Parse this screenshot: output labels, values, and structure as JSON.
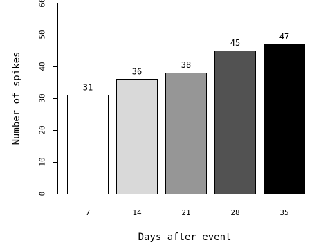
{
  "chart_data": {
    "type": "bar",
    "categories": [
      "7",
      "14",
      "21",
      "28",
      "35"
    ],
    "values": [
      31,
      36,
      38,
      45,
      47
    ],
    "data_labels": [
      "31",
      "36",
      "38",
      "45",
      "47"
    ],
    "bar_colors": [
      "#ffffff",
      "#d9d9d9",
      "#969696",
      "#525252",
      "#000000"
    ],
    "xlabel": "Days after event",
    "ylabel": "Number of spikes",
    "ylim": [
      0,
      60
    ],
    "yticks": [
      0,
      10,
      20,
      30,
      40,
      50,
      60
    ],
    "ytick_labels": [
      "0",
      "10",
      "20",
      "30",
      "40",
      "50",
      "60"
    ],
    "grid": false,
    "legend": "none"
  }
}
